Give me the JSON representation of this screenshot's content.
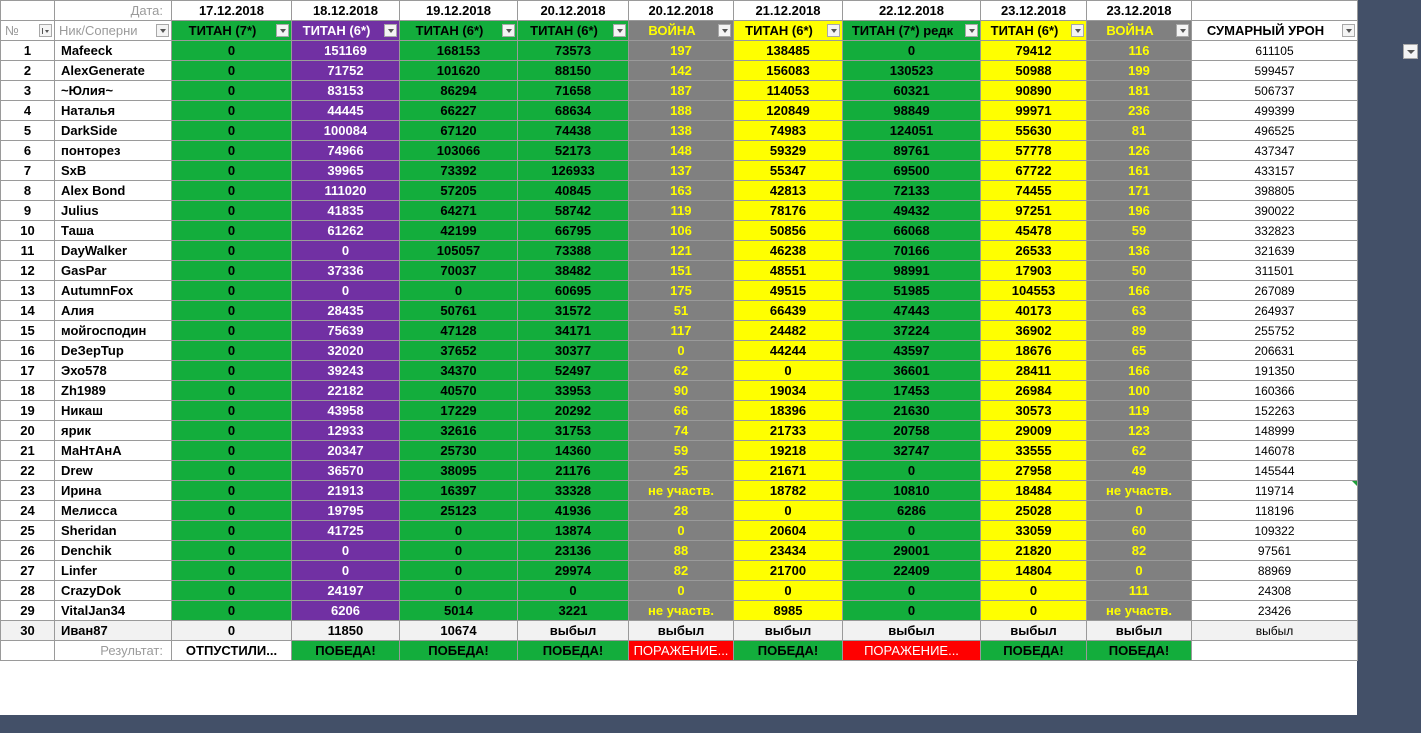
{
  "labels": {
    "date_label": "Дата:",
    "num_label": "№",
    "nick_label": "Ник/Соперни",
    "result_label": "Результат:"
  },
  "columns": [
    {
      "date": "17.12.2018",
      "type": "ТИТАН (7*)"
    },
    {
      "date": "18.12.2018",
      "type": "ТИТАН (6*)"
    },
    {
      "date": "19.12.2018",
      "type": "ТИТАН (6*)"
    },
    {
      "date": "20.12.2018",
      "type": "ТИТАН (6*)"
    },
    {
      "date": "20.12.2018",
      "type": "ВОЙНА"
    },
    {
      "date": "21.12.2018",
      "type": "ТИТАН (6*)"
    },
    {
      "date": "22.12.2018",
      "type": "ТИТАН (7*) редк"
    },
    {
      "date": "23.12.2018",
      "type": "ТИТАН (6*)"
    },
    {
      "date": "23.12.2018",
      "type": "ВОЙНА"
    }
  ],
  "total_header": "СУМАРНЫЙ УРОН",
  "rows": [
    {
      "n": "1",
      "name": "Mafeeck",
      "v": [
        "0",
        "151169",
        "168153",
        "73573",
        "197",
        "138485",
        "0",
        "79412",
        "116"
      ],
      "total": "611105"
    },
    {
      "n": "2",
      "name": "AlexGenerate",
      "v": [
        "0",
        "71752",
        "101620",
        "88150",
        "142",
        "156083",
        "130523",
        "50988",
        "199"
      ],
      "total": "599457"
    },
    {
      "n": "3",
      "name": "~Юлия~",
      "v": [
        "0",
        "83153",
        "86294",
        "71658",
        "187",
        "114053",
        "60321",
        "90890",
        "181"
      ],
      "total": "506737"
    },
    {
      "n": "4",
      "name": "Наталья",
      "v": [
        "0",
        "44445",
        "66227",
        "68634",
        "188",
        "120849",
        "98849",
        "99971",
        "236"
      ],
      "total": "499399"
    },
    {
      "n": "5",
      "name": "DarkSide",
      "v": [
        "0",
        "100084",
        "67120",
        "74438",
        "138",
        "74983",
        "124051",
        "55630",
        "81"
      ],
      "total": "496525"
    },
    {
      "n": "6",
      "name": "понторез",
      "v": [
        "0",
        "74966",
        "103066",
        "52173",
        "148",
        "59329",
        "89761",
        "57778",
        "126"
      ],
      "total": "437347"
    },
    {
      "n": "7",
      "name": "SxB",
      "v": [
        "0",
        "39965",
        "73392",
        "126933",
        "137",
        "55347",
        "69500",
        "67722",
        "161"
      ],
      "total": "433157"
    },
    {
      "n": "8",
      "name": "Alex Bond",
      "v": [
        "0",
        "111020",
        "57205",
        "40845",
        "163",
        "42813",
        "72133",
        "74455",
        "171"
      ],
      "total": "398805"
    },
    {
      "n": "9",
      "name": "Julius",
      "v": [
        "0",
        "41835",
        "64271",
        "58742",
        "119",
        "78176",
        "49432",
        "97251",
        "196"
      ],
      "total": "390022"
    },
    {
      "n": "10",
      "name": "Таша",
      "v": [
        "0",
        "61262",
        "42199",
        "66795",
        "106",
        "50856",
        "66068",
        "45478",
        "59"
      ],
      "total": "332823"
    },
    {
      "n": "11",
      "name": "DayWalker",
      "v": [
        "0",
        "0",
        "105057",
        "73388",
        "121",
        "46238",
        "70166",
        "26533",
        "136"
      ],
      "total": "321639"
    },
    {
      "n": "12",
      "name": "GasPar",
      "v": [
        "0",
        "37336",
        "70037",
        "38482",
        "151",
        "48551",
        "98991",
        "17903",
        "50"
      ],
      "total": "311501"
    },
    {
      "n": "13",
      "name": "AutumnFox",
      "v": [
        "0",
        "0",
        "0",
        "60695",
        "175",
        "49515",
        "51985",
        "104553",
        "166"
      ],
      "total": "267089"
    },
    {
      "n": "14",
      "name": "Алия",
      "v": [
        "0",
        "28435",
        "50761",
        "31572",
        "51",
        "66439",
        "47443",
        "40173",
        "63"
      ],
      "total": "264937"
    },
    {
      "n": "15",
      "name": "мойгосподин",
      "v": [
        "0",
        "75639",
        "47128",
        "34171",
        "117",
        "24482",
        "37224",
        "36902",
        "89"
      ],
      "total": "255752"
    },
    {
      "n": "16",
      "name": "DeЗерTup",
      "v": [
        "0",
        "32020",
        "37652",
        "30377",
        "0",
        "44244",
        "43597",
        "18676",
        "65"
      ],
      "total": "206631"
    },
    {
      "n": "17",
      "name": "Эхо578",
      "v": [
        "0",
        "39243",
        "34370",
        "52497",
        "62",
        "0",
        "36601",
        "28411",
        "166"
      ],
      "total": "191350"
    },
    {
      "n": "18",
      "name": "Zh1989",
      "v": [
        "0",
        "22182",
        "40570",
        "33953",
        "90",
        "19034",
        "17453",
        "26984",
        "100"
      ],
      "total": "160366"
    },
    {
      "n": "19",
      "name": "Никаш",
      "v": [
        "0",
        "43958",
        "17229",
        "20292",
        "66",
        "18396",
        "21630",
        "30573",
        "119"
      ],
      "total": "152263"
    },
    {
      "n": "20",
      "name": "ярик",
      "v": [
        "0",
        "12933",
        "32616",
        "31753",
        "74",
        "21733",
        "20758",
        "29009",
        "123"
      ],
      "total": "148999"
    },
    {
      "n": "21",
      "name": "МаНтАнА",
      "v": [
        "0",
        "20347",
        "25730",
        "14360",
        "59",
        "19218",
        "32747",
        "33555",
        "62"
      ],
      "total": "146078"
    },
    {
      "n": "22",
      "name": "Drew",
      "v": [
        "0",
        "36570",
        "38095",
        "21176",
        "25",
        "21671",
        "0",
        "27958",
        "49"
      ],
      "total": "145544"
    },
    {
      "n": "23",
      "name": "Ирина",
      "v": [
        "0",
        "21913",
        "16397",
        "33328",
        "не участв.",
        "18782",
        "10810",
        "18484",
        "не участв."
      ],
      "total": "119714"
    },
    {
      "n": "24",
      "name": "Мелисса",
      "v": [
        "0",
        "19795",
        "25123",
        "41936",
        "28",
        "0",
        "6286",
        "25028",
        "0"
      ],
      "total": "118196"
    },
    {
      "n": "25",
      "name": "Sheridan",
      "v": [
        "0",
        "41725",
        "0",
        "13874",
        "0",
        "20604",
        "0",
        "33059",
        "60"
      ],
      "total": "109322"
    },
    {
      "n": "26",
      "name": "Denchik",
      "v": [
        "0",
        "0",
        "0",
        "23136",
        "88",
        "23434",
        "29001",
        "21820",
        "82"
      ],
      "total": "97561"
    },
    {
      "n": "27",
      "name": "Linfer",
      "v": [
        "0",
        "0",
        "0",
        "29974",
        "82",
        "21700",
        "22409",
        "14804",
        "0"
      ],
      "total": "88969"
    },
    {
      "n": "28",
      "name": "CrazyDok",
      "v": [
        "0",
        "24197",
        "0",
        "0",
        "0",
        "0",
        "0",
        "0",
        "111"
      ],
      "total": "24308"
    },
    {
      "n": "29",
      "name": "VitalJan34",
      "v": [
        "0",
        "6206",
        "5014",
        "3221",
        "не участв.",
        "8985",
        "0",
        "0",
        "не участв."
      ],
      "total": "23426"
    },
    {
      "n": "30",
      "name": "Иван87",
      "v": [
        "0",
        "11850",
        "10674",
        "выбыл",
        "выбыл",
        "выбыл",
        "выбыл",
        "выбыл",
        "выбыл"
      ],
      "total": "выбыл"
    }
  ],
  "results": [
    "ОТПУСТИЛИ...",
    "ПОБЕДА!",
    "ПОБЕДА!",
    "ПОБЕДА!",
    "ПОРАЖЕНИЕ...",
    "ПОБЕДА!",
    "ПОРАЖЕНИЕ...",
    "ПОБЕДА!",
    "ПОБЕДА!"
  ],
  "colors": {
    "background": "#435068",
    "green": "#13ad3c",
    "purple": "#7130a3",
    "yellow": "#ffff00",
    "gray": "#808080",
    "red": "#ff0000",
    "war_text": "#ffff00"
  }
}
